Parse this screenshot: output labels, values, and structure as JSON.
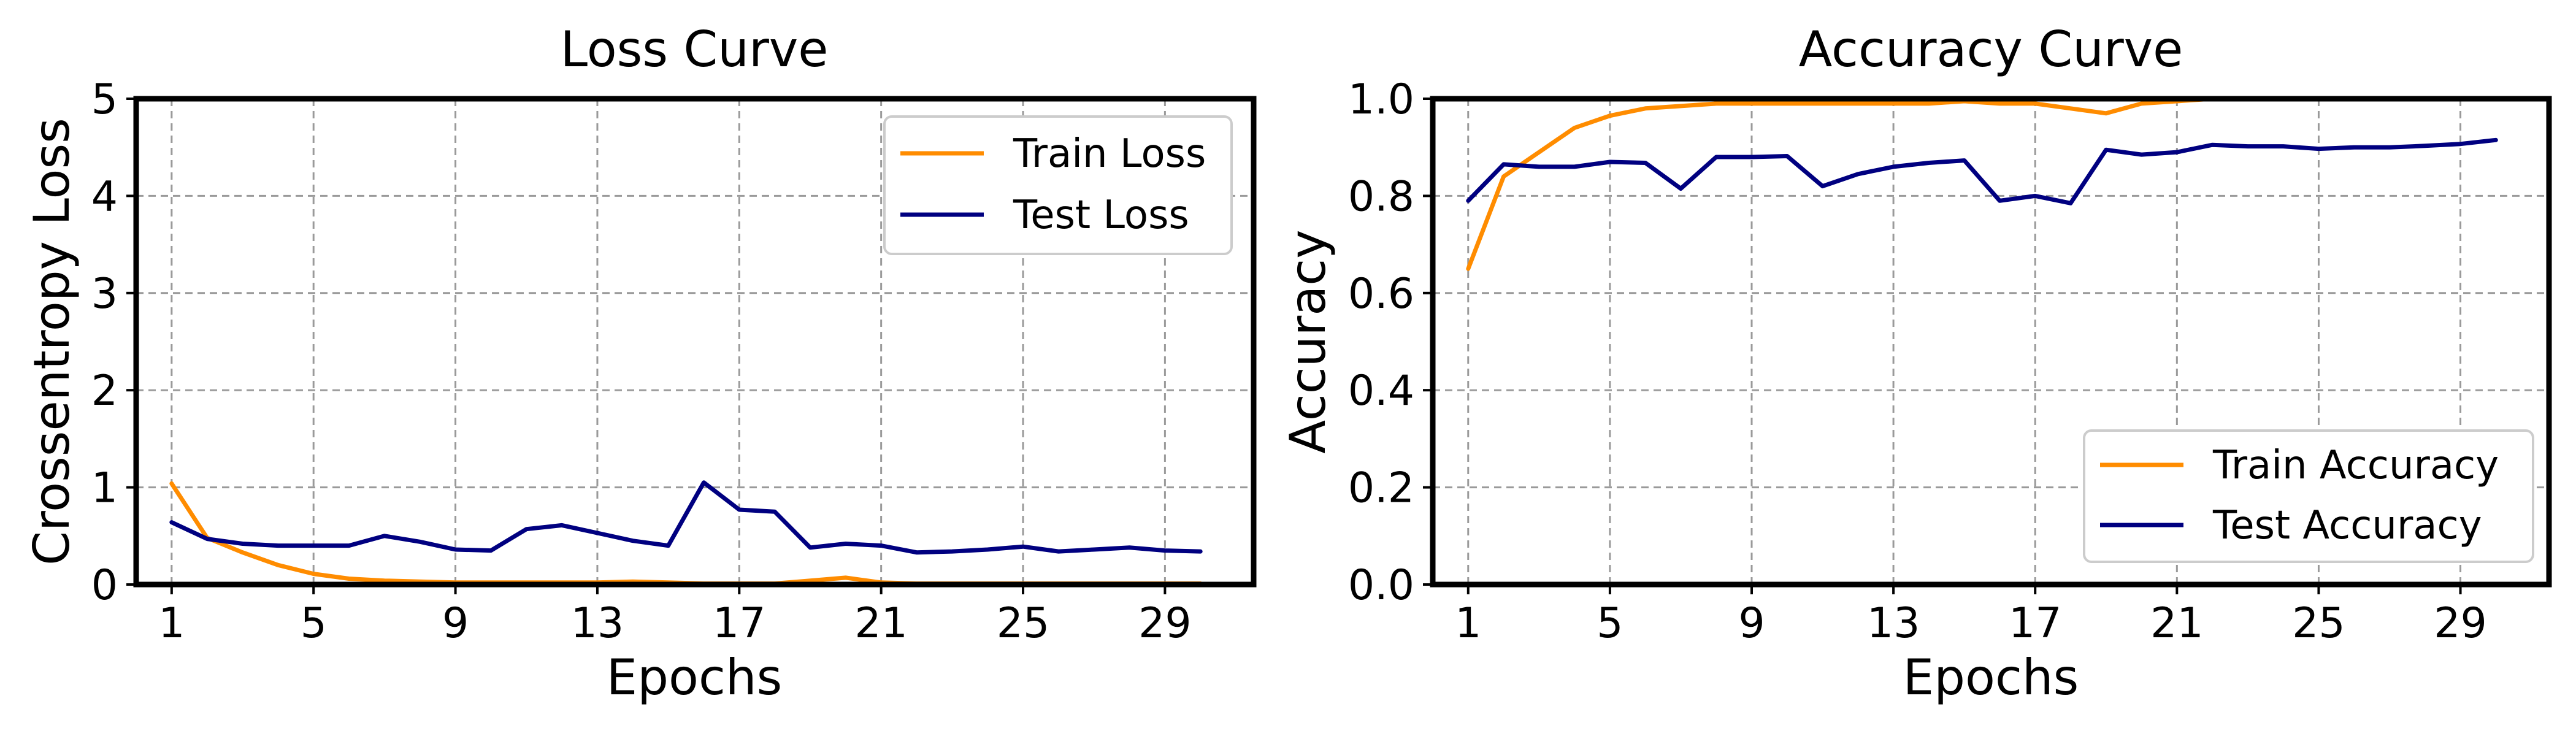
{
  "colors": {
    "train": "#ff8c00",
    "test": "#000080"
  },
  "chart_data": [
    {
      "type": "line",
      "title": "Loss Curve",
      "xlabel": "Epochs",
      "ylabel": "Crossentropy Loss",
      "xlim": [
        0,
        31.5
      ],
      "ylim": [
        0,
        5
      ],
      "xticks": [
        1,
        5,
        9,
        13,
        17,
        21,
        25,
        29
      ],
      "yticks": [
        0,
        1,
        2,
        3,
        4,
        5
      ],
      "grid": true,
      "legend_position": "top-right",
      "x": [
        1,
        2,
        3,
        4,
        5,
        6,
        7,
        8,
        9,
        10,
        11,
        12,
        13,
        14,
        15,
        16,
        17,
        18,
        19,
        20,
        21,
        22,
        23,
        24,
        25,
        26,
        27,
        28,
        29,
        30
      ],
      "series": [
        {
          "name": "Train Loss",
          "color": "#ff8c00",
          "values": [
            1.04,
            0.48,
            0.33,
            0.2,
            0.11,
            0.06,
            0.04,
            0.03,
            0.02,
            0.02,
            0.02,
            0.02,
            0.02,
            0.03,
            0.02,
            0.01,
            0.01,
            0.01,
            0.04,
            0.07,
            0.02,
            0.01,
            0.01,
            0.01,
            0.01,
            0.01,
            0.01,
            0.01,
            0.01,
            0.01
          ]
        },
        {
          "name": "Test Loss",
          "color": "#000080",
          "values": [
            0.64,
            0.47,
            0.42,
            0.4,
            0.4,
            0.4,
            0.5,
            0.44,
            0.36,
            0.35,
            0.57,
            0.61,
            0.53,
            0.45,
            0.4,
            1.05,
            0.77,
            0.75,
            0.38,
            0.42,
            0.4,
            0.33,
            0.34,
            0.36,
            0.39,
            0.34,
            0.36,
            0.38,
            0.35,
            0.34
          ]
        }
      ]
    },
    {
      "type": "line",
      "title": "Accuracy Curve",
      "xlabel": "Epochs",
      "ylabel": "Accuracy",
      "xlim": [
        0,
        31.5
      ],
      "ylim": [
        0,
        1
      ],
      "xticks": [
        1,
        5,
        9,
        13,
        17,
        21,
        25,
        29
      ],
      "yticks": [
        0.0,
        0.2,
        0.4,
        0.6,
        0.8,
        1.0
      ],
      "grid": true,
      "legend_position": "bottom-right",
      "x": [
        1,
        2,
        3,
        4,
        5,
        6,
        7,
        8,
        9,
        10,
        11,
        12,
        13,
        14,
        15,
        16,
        17,
        18,
        19,
        20,
        21,
        22,
        23,
        24,
        25,
        26,
        27,
        28,
        29,
        30
      ],
      "series": [
        {
          "name": "Train Accuracy",
          "color": "#ff8c00",
          "values": [
            0.65,
            0.84,
            0.89,
            0.94,
            0.965,
            0.98,
            0.985,
            0.99,
            0.99,
            0.99,
            0.99,
            0.99,
            0.99,
            0.99,
            0.995,
            0.99,
            0.99,
            0.98,
            0.97,
            0.99,
            0.995,
            1.0,
            1.0,
            1.0,
            1.0,
            1.0,
            1.0,
            1.0,
            1.0,
            1.0
          ]
        },
        {
          "name": "Test Accuracy",
          "color": "#000080",
          "values": [
            0.79,
            0.865,
            0.86,
            0.86,
            0.87,
            0.868,
            0.815,
            0.88,
            0.88,
            0.882,
            0.82,
            0.845,
            0.86,
            0.868,
            0.873,
            0.79,
            0.8,
            0.785,
            0.895,
            0.885,
            0.89,
            0.905,
            0.902,
            0.902,
            0.897,
            0.9,
            0.9,
            0.903,
            0.907,
            0.915
          ]
        }
      ]
    }
  ]
}
